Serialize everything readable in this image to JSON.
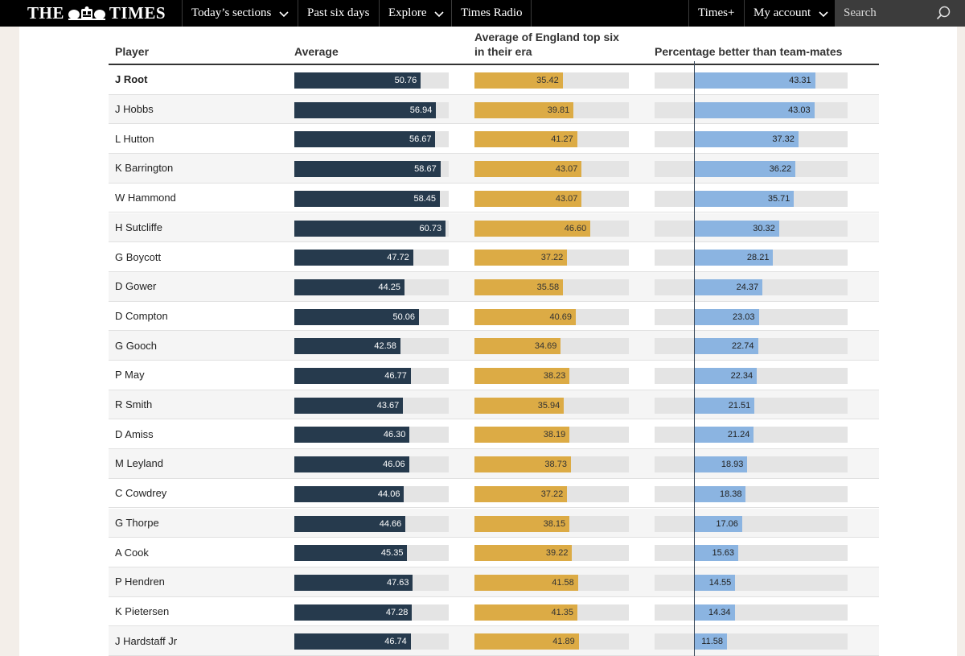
{
  "nav": {
    "logo_left": "THE",
    "logo_right": "TIMES",
    "items": [
      "Today’s sections",
      "Past six days",
      "Explore",
      "Times Radio"
    ],
    "right_items": [
      "Times+",
      "My account"
    ],
    "search_placeholder": "Search"
  },
  "table": {
    "headers": {
      "player": "Player",
      "average": "Average",
      "era_line1": "Average of England top six",
      "era_line2": "in their era",
      "pct": "Percentage better than team-mates"
    },
    "colors": {
      "average": "#263a4d",
      "era": "#dcab45",
      "pct": "#8bb4e1",
      "track": "#e4e4e4"
    },
    "bar_max": {
      "average": 62,
      "era": 62,
      "pct": 55
    },
    "rows": [
      {
        "player": "J Root",
        "average": "50.76",
        "era": "35.42",
        "pct": "43.31"
      },
      {
        "player": "J Hobbs",
        "average": "56.94",
        "era": "39.81",
        "pct": "43.03"
      },
      {
        "player": "L Hutton",
        "average": "56.67",
        "era": "41.27",
        "pct": "37.32"
      },
      {
        "player": "K Barrington",
        "average": "58.67",
        "era": "43.07",
        "pct": "36.22"
      },
      {
        "player": "W Hammond",
        "average": "58.45",
        "era": "43.07",
        "pct": "35.71"
      },
      {
        "player": "H Sutcliffe",
        "average": "60.73",
        "era": "46.60",
        "pct": "30.32"
      },
      {
        "player": "G Boycott",
        "average": "47.72",
        "era": "37.22",
        "pct": "28.21"
      },
      {
        "player": "D Gower",
        "average": "44.25",
        "era": "35.58",
        "pct": "24.37"
      },
      {
        "player": "D Compton",
        "average": "50.06",
        "era": "40.69",
        "pct": "23.03"
      },
      {
        "player": "G Gooch",
        "average": "42.58",
        "era": "34.69",
        "pct": "22.74"
      },
      {
        "player": "P May",
        "average": "46.77",
        "era": "38.23",
        "pct": "22.34"
      },
      {
        "player": "R Smith",
        "average": "43.67",
        "era": "35.94",
        "pct": "21.51"
      },
      {
        "player": "D Amiss",
        "average": "46.30",
        "era": "38.19",
        "pct": "21.24"
      },
      {
        "player": "M Leyland",
        "average": "46.06",
        "era": "38.73",
        "pct": "18.93"
      },
      {
        "player": "C Cowdrey",
        "average": "44.06",
        "era": "37.22",
        "pct": "18.38"
      },
      {
        "player": "G Thorpe",
        "average": "44.66",
        "era": "38.15",
        "pct": "17.06"
      },
      {
        "player": "A Cook",
        "average": "45.35",
        "era": "39.22",
        "pct": "15.63"
      },
      {
        "player": "P Hendren",
        "average": "47.63",
        "era": "41.58",
        "pct": "14.55"
      },
      {
        "player": "K Pietersen",
        "average": "47.28",
        "era": "41.35",
        "pct": "14.34"
      },
      {
        "player": "J Hardstaff Jr",
        "average": "46.74",
        "era": "41.89",
        "pct": "11.58"
      }
    ]
  }
}
